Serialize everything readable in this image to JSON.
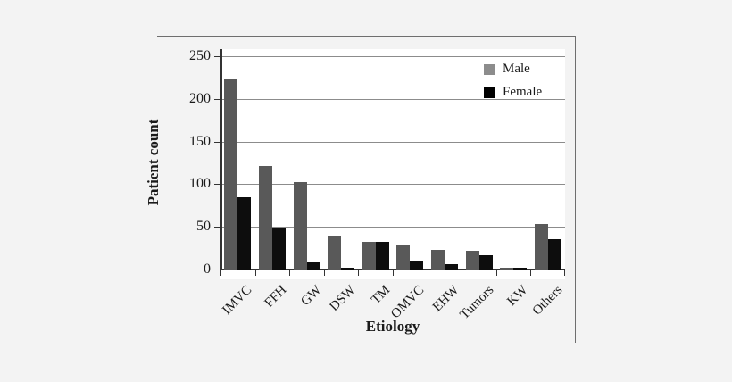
{
  "chart_data": {
    "type": "bar",
    "title": "",
    "xlabel": "Etiology",
    "ylabel": "Patient count",
    "categories": [
      "IMVC",
      "FFH",
      "GW",
      "DSW",
      "TM",
      "OMVC",
      "EHW",
      "Tumors",
      "KW",
      "Others"
    ],
    "series": [
      {
        "name": "Male",
        "color": "#595959",
        "legend_color": "#8c8c8c",
        "values": [
          224,
          121,
          103,
          40,
          32,
          29,
          23,
          22,
          2,
          53
        ]
      },
      {
        "name": "Female",
        "color": "#0d0d0d",
        "legend_color": "#000000",
        "values": [
          85,
          49,
          9,
          2,
          32,
          10,
          6,
          17,
          2,
          36
        ]
      }
    ],
    "ylim": [
      0,
      250
    ],
    "yticks": [
      0,
      50,
      100,
      150,
      200,
      250
    ],
    "grid": true,
    "legend_position": "top-right"
  },
  "colors": {
    "page_background": "#f3f3f3",
    "plot_background": "#ffffff",
    "gridline": "#8c8c8c",
    "axis": "#333333",
    "figure_border": "#6e6e6e",
    "male_bar": "#595959",
    "female_bar": "#0d0d0d"
  }
}
